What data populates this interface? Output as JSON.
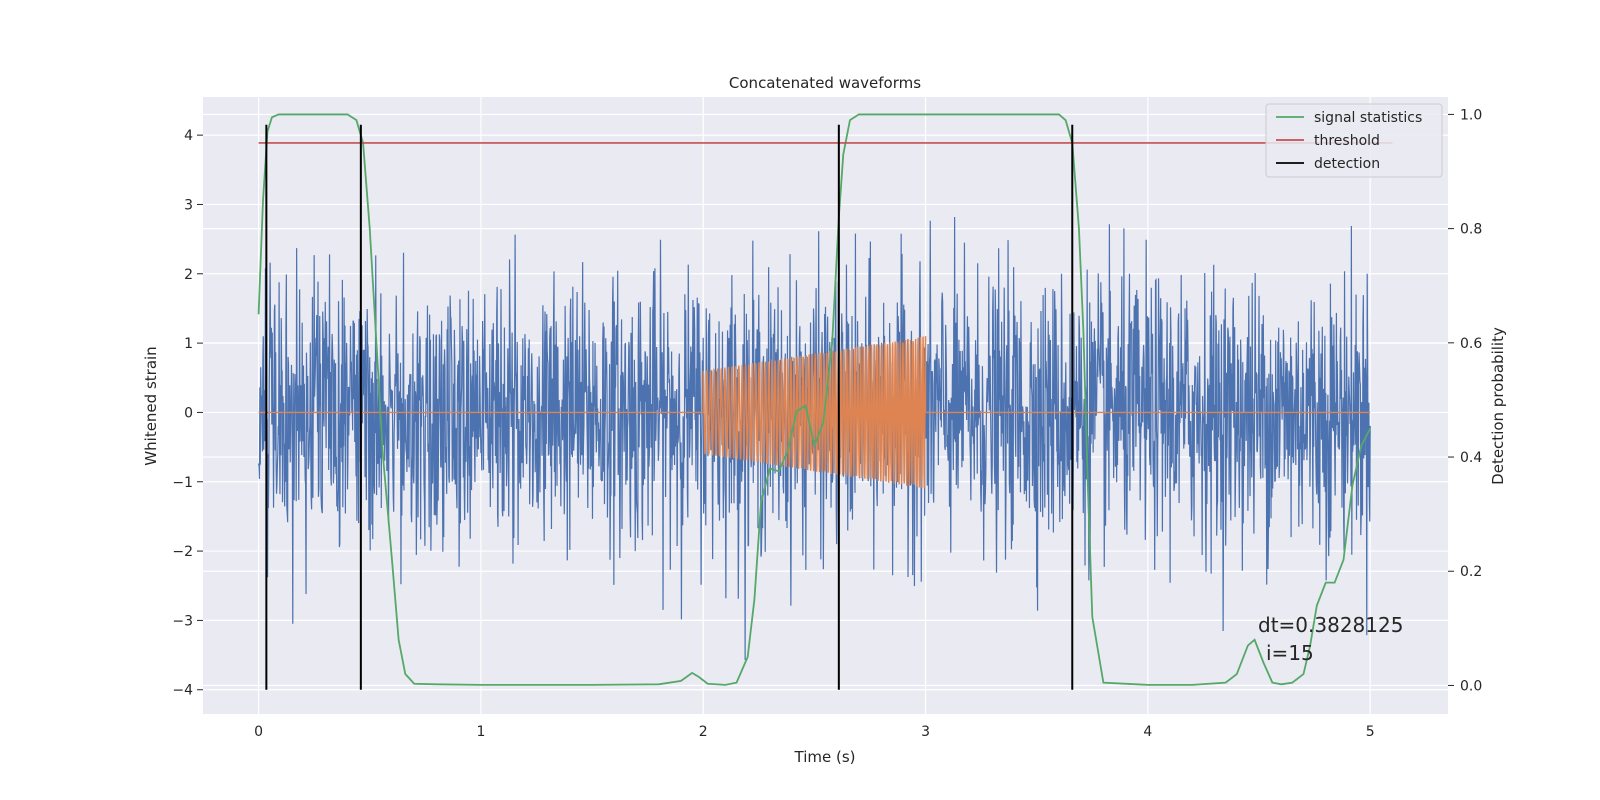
{
  "chart_data": {
    "type": "line",
    "title": "Concatenated waveforms",
    "xlabel": "Time (s)",
    "ylabel": "Whitened strain",
    "y2label": "Detection probability",
    "xlim": [
      -0.25,
      5.35
    ],
    "ylim": [
      -4.35,
      4.55
    ],
    "y2lim": [
      -0.05,
      1.0305
    ],
    "xticks": [
      0,
      1,
      2,
      3,
      4,
      5
    ],
    "yticks": [
      -4,
      -3,
      -2,
      -1,
      0,
      1,
      2,
      3,
      4
    ],
    "y2ticks": [
      0.0,
      0.2,
      0.4,
      0.6,
      0.8,
      1.0
    ],
    "grid": true,
    "legend_position": "top-right",
    "colors": {
      "strain": "#4c72b0",
      "injection": "#dd8452",
      "statistics": "#55a868",
      "threshold": "#c44e52",
      "detection": "#000000"
    },
    "series": [
      {
        "name": "signal statistics",
        "axis": "right",
        "x": [
          0.0,
          0.02,
          0.04,
          0.06,
          0.09,
          0.12,
          0.2,
          0.3,
          0.4,
          0.44,
          0.47,
          0.5,
          0.53,
          0.56,
          0.6,
          0.63,
          0.66,
          0.7,
          0.8,
          1.0,
          1.5,
          1.8,
          1.9,
          1.95,
          1.98,
          2.02,
          2.1,
          2.15,
          2.2,
          2.23,
          2.26,
          2.3,
          2.34,
          2.38,
          2.42,
          2.46,
          2.5,
          2.54,
          2.58,
          2.61,
          2.63,
          2.66,
          2.7,
          2.75,
          2.8,
          3.0,
          3.3,
          3.6,
          3.63,
          3.66,
          3.69,
          3.71,
          3.73,
          3.75,
          3.8,
          4.0,
          4.2,
          4.35,
          4.4,
          4.45,
          4.48,
          4.52,
          4.56,
          4.6,
          4.65,
          4.7,
          4.73,
          4.76,
          4.8,
          4.84,
          4.88,
          4.92,
          4.96,
          5.0
        ],
        "y": [
          0.65,
          0.85,
          0.97,
          0.995,
          1.0,
          1.0,
          1.0,
          1.0,
          1.0,
          0.99,
          0.95,
          0.8,
          0.6,
          0.4,
          0.22,
          0.08,
          0.02,
          0.003,
          0.002,
          0.001,
          0.001,
          0.002,
          0.008,
          0.022,
          0.015,
          0.003,
          0.001,
          0.005,
          0.05,
          0.15,
          0.32,
          0.38,
          0.375,
          0.41,
          0.48,
          0.49,
          0.42,
          0.46,
          0.6,
          0.82,
          0.93,
          0.99,
          1.0,
          1.0,
          1.0,
          1.0,
          1.0,
          1.0,
          0.99,
          0.95,
          0.8,
          0.62,
          0.35,
          0.12,
          0.005,
          0.001,
          0.001,
          0.005,
          0.02,
          0.07,
          0.08,
          0.04,
          0.005,
          0.002,
          0.005,
          0.02,
          0.07,
          0.14,
          0.18,
          0.18,
          0.22,
          0.35,
          0.42,
          0.45
        ]
      },
      {
        "name": "threshold",
        "axis": "right",
        "x": [
          0.0,
          5.1
        ],
        "y": [
          0.95,
          0.95
        ]
      },
      {
        "name": "detection",
        "axis": "left",
        "x": [
          0.035,
          0.46,
          2.61,
          3.66
        ],
        "ymin": -4.0,
        "ymax": 4.15
      }
    ],
    "strain_noise": {
      "x_start": 0.0,
      "x_end": 5.0,
      "ymin": -3.95,
      "ymax": 4.15
    },
    "injection": {
      "x_start": 2.0,
      "x_end": 3.0,
      "amp_start": 0.6,
      "amp_end": 1.1
    },
    "annotation": {
      "line1": "dt=0.3828125",
      "line2": "i=15",
      "x": 4.5,
      "y": -3.05
    }
  }
}
